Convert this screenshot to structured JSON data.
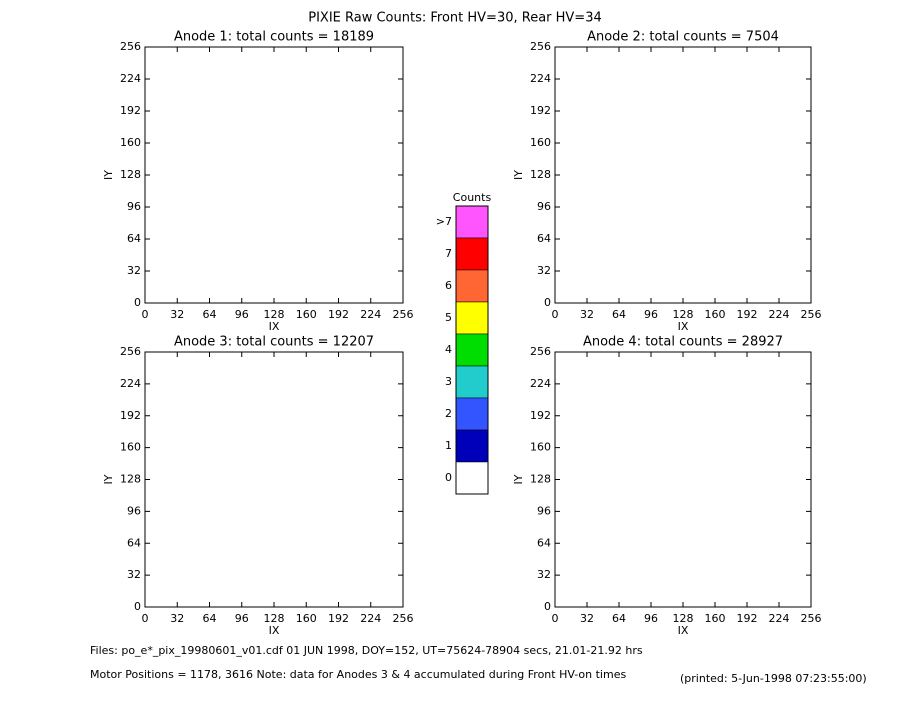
{
  "title": "PIXIE Raw Counts:  Front HV=30, Rear HV=34",
  "chart_data": [
    {
      "type": "heatmap",
      "title": "Anode 1: total counts = 18189",
      "xlabel": "IX",
      "ylabel": "IY",
      "xlim": [
        0,
        256
      ],
      "ylim": [
        0,
        256
      ],
      "xticks": [
        0,
        32,
        64,
        96,
        128,
        160,
        192,
        224,
        256
      ],
      "yticks": [
        0,
        32,
        64,
        96,
        128,
        160,
        192,
        224,
        256
      ]
    },
    {
      "type": "heatmap",
      "title": "Anode 2: total counts = 7504",
      "xlabel": "IX",
      "ylabel": "IY",
      "xlim": [
        0,
        256
      ],
      "ylim": [
        0,
        256
      ],
      "xticks": [
        0,
        32,
        64,
        96,
        128,
        160,
        192,
        224,
        256
      ],
      "yticks": [
        0,
        32,
        64,
        96,
        128,
        160,
        192,
        224,
        256
      ]
    },
    {
      "type": "heatmap",
      "title": "Anode 3: total counts = 12207",
      "xlabel": "IX",
      "ylabel": "IY",
      "xlim": [
        0,
        256
      ],
      "ylim": [
        0,
        256
      ],
      "xticks": [
        0,
        32,
        64,
        96,
        128,
        160,
        192,
        224,
        256
      ],
      "yticks": [
        0,
        32,
        64,
        96,
        128,
        160,
        192,
        224,
        256
      ]
    },
    {
      "type": "heatmap",
      "title": "Anode 4: total counts = 28927",
      "xlabel": "IX",
      "ylabel": "IY",
      "xlim": [
        0,
        256
      ],
      "ylim": [
        0,
        256
      ],
      "xticks": [
        0,
        32,
        64,
        96,
        128,
        160,
        192,
        224,
        256
      ],
      "yticks": [
        0,
        32,
        64,
        96,
        128,
        160,
        192,
        224,
        256
      ]
    }
  ],
  "colorbar": {
    "title": "Counts",
    "levels": [
      {
        "label": ">7",
        "color": "#ff55ff"
      },
      {
        "label": "7",
        "color": "#ff0000"
      },
      {
        "label": "6",
        "color": "#ff6633"
      },
      {
        "label": "5",
        "color": "#ffff00"
      },
      {
        "label": "4",
        "color": "#00dd00"
      },
      {
        "label": "3",
        "color": "#22cccc"
      },
      {
        "label": "2",
        "color": "#3355ff"
      },
      {
        "label": "1",
        "color": "#0000bb"
      },
      {
        "label": "0",
        "color": "#ffffff"
      }
    ]
  },
  "footer": {
    "files": "Files: po_e*_pix_19980601_v01.cdf     01 JUN 1998, DOY=152, UT=75624-78904 secs, 21.01-21.92 hrs",
    "motor": "Motor Positions = 1178, 3616    Note: data for Anodes 3 & 4 accumulated during Front HV-on times",
    "printed": "(printed:  5-Jun-1998 07:23:55:00)"
  }
}
